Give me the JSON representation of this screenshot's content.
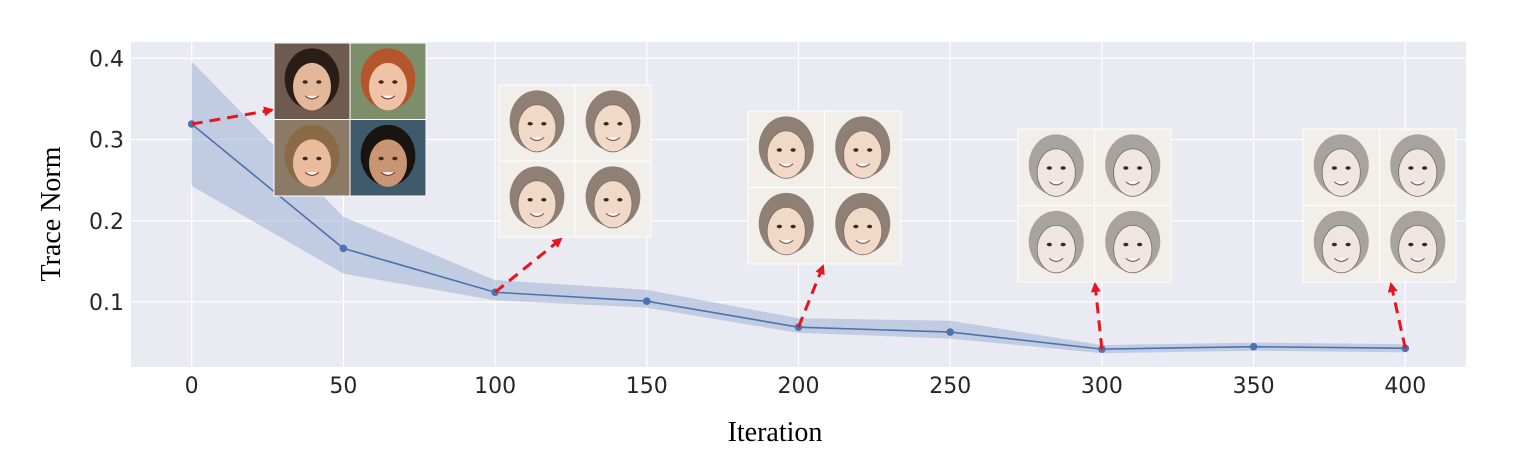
{
  "chart_data": {
    "type": "line",
    "title": "",
    "xlabel": "Iteration",
    "ylabel": "Trace Norm",
    "xlim": [
      -20,
      420
    ],
    "ylim": [
      0.02,
      0.42
    ],
    "xticks": [
      0,
      50,
      100,
      150,
      200,
      250,
      300,
      350,
      400
    ],
    "yticks": [
      0.1,
      0.2,
      0.3,
      0.4
    ],
    "xtick_labels": [
      "0",
      "50",
      "100",
      "150",
      "200",
      "250",
      "300",
      "350",
      "400"
    ],
    "ytick_labels": [
      "0.1",
      "0.2",
      "0.3",
      "0.4"
    ],
    "grid": true,
    "series": [
      {
        "x": [
          0,
          50,
          100,
          150,
          200,
          250,
          300,
          350,
          400
        ],
        "values": [
          0.319,
          0.166,
          0.112,
          0.101,
          0.069,
          0.063,
          0.042,
          0.045,
          0.043
        ],
        "lower": [
          0.243,
          0.135,
          0.102,
          0.093,
          0.062,
          0.055,
          0.037,
          0.04,
          0.038
        ],
        "upper": [
          0.396,
          0.205,
          0.127,
          0.115,
          0.08,
          0.077,
          0.047,
          0.05,
          0.048
        ],
        "color": "#4c72b0",
        "band_color": "#9fb3d6"
      }
    ],
    "annotations": [
      {
        "label": "face-grid-iter-0",
        "x": 0,
        "y": 0.319,
        "arrow_color": "#e8141b"
      },
      {
        "label": "face-grid-iter-100",
        "x": 100,
        "y": 0.112,
        "arrow_color": "#e8141b"
      },
      {
        "label": "face-grid-iter-200",
        "x": 200,
        "y": 0.069,
        "arrow_color": "#e8141b"
      },
      {
        "label": "face-grid-iter-300",
        "x": 300,
        "y": 0.042,
        "arrow_color": "#e8141b"
      },
      {
        "label": "face-grid-iter-400",
        "x": 400,
        "y": 0.043,
        "arrow_color": "#e8141b"
      }
    ],
    "background_color": "#eaeaf2",
    "grid_color": "#ffffff"
  }
}
